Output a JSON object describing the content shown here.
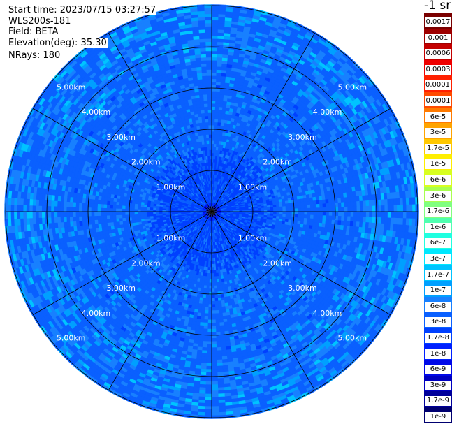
{
  "header": {
    "start_time": "Start time: 2023/07/15 03:27:57",
    "instrument": "WLS200s-181",
    "field": "Field: BETA",
    "elevation": "Elevation(deg): 35.30",
    "nrays": "NRays: 180"
  },
  "colorbar": {
    "unit": "-1 sr",
    "labels": [
      "0.0017",
      "0.001",
      "0.0006",
      "0.0003",
      "0.00017",
      "0.0001",
      "6e-5",
      "3e-5",
      "1.7e-5",
      "1e-5",
      "6e-6",
      "3e-6",
      "1.7e-6",
      "1e-6",
      "6e-7",
      "3e-7",
      "1.7e-7",
      "1e-7",
      "6e-8",
      "3e-8",
      "1.7e-8",
      "1e-8",
      "6e-9",
      "3e-9",
      "1.7e-9",
      "1e-9"
    ],
    "colors": [
      "#7a0000",
      "#9e0000",
      "#c40000",
      "#ee0000",
      "#ff2000",
      "#ff4a00",
      "#ff7a00",
      "#ffa400",
      "#ffc800",
      "#ffee00",
      "#d8ff20",
      "#a8ff50",
      "#80ff80",
      "#50ffb0",
      "#20ffe0",
      "#00e8ff",
      "#00c4ff",
      "#00a0ff",
      "#1880ff",
      "#0a60ff",
      "#0040ff",
      "#0020ff",
      "#0008e8",
      "#0000c0",
      "#00009a",
      "#000070"
    ]
  },
  "range_labels": {
    "ring_1": "1.00km",
    "ring_2": "2.00km",
    "ring_3": "3.00km",
    "ring_4": "4.00km",
    "ring_5": "5.00km"
  },
  "map": {
    "num_rays": 180,
    "max_range_km": 5.0
  }
}
